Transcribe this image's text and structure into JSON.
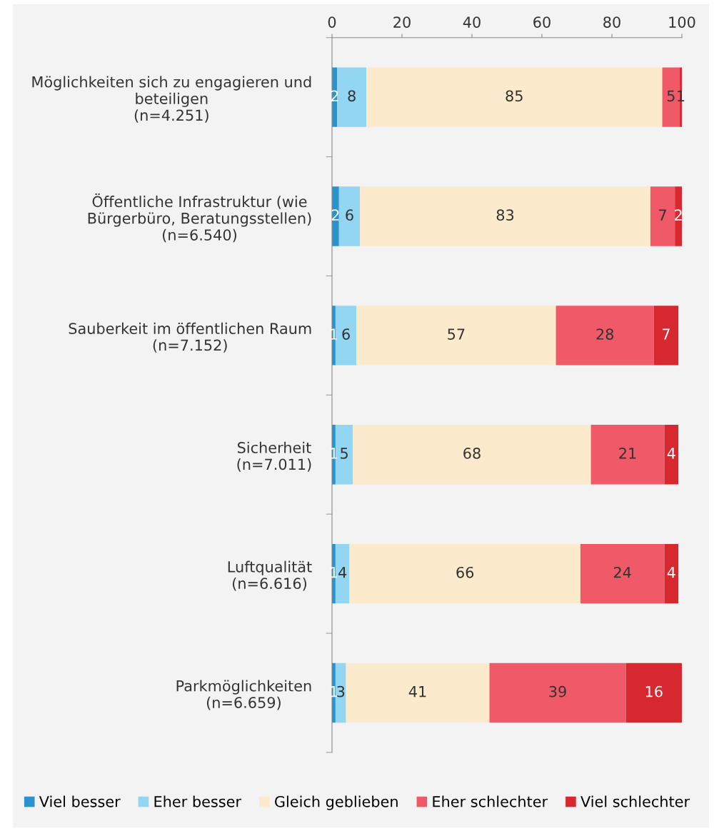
{
  "chart_data": {
    "type": "bar",
    "orientation": "horizontal",
    "stacked": true,
    "grid": false,
    "legend": "bottom",
    "categories": [
      "Möglichkeiten sich zu engagieren und\nbeteiligen\n(n=4.251)",
      "Öffentliche Infrastruktur (wie\nBürgerbüro, Beratungsstellen)\n(n=6.540)",
      "Sauberkeit im öffentlichen Raum\n(n=7.152)",
      "Sicherheit\n(n=7.011)",
      "Luftqualität\n(n=6.616)",
      "Parkmöglichkeiten\n(n=6.659)"
    ],
    "xlim": [
      0,
      100
    ],
    "xticks": [
      0,
      20,
      40,
      60,
      80,
      100
    ],
    "series": [
      {
        "name": "Viel besser",
        "color": "#2a93cc",
        "values": [
          1.5,
          2,
          1,
          1,
          1,
          1
        ],
        "value_labels": [
          "2",
          "2",
          "1",
          "1",
          "1",
          "1"
        ]
      },
      {
        "name": "Eher besser",
        "color": "#92d6f2",
        "values": [
          8.3,
          6,
          6,
          5,
          4,
          3
        ],
        "value_labels": [
          "8",
          "6",
          "6",
          "5",
          "4",
          "3"
        ]
      },
      {
        "name": "Gleich geblieben",
        "color": "#fbeacc",
        "values": [
          84.6,
          83,
          57,
          68,
          66,
          41
        ],
        "value_labels": [
          "85",
          "83",
          "57",
          "68",
          "66",
          "41"
        ]
      },
      {
        "name": "Eher schlechter",
        "color": "#f05a68",
        "values": [
          5,
          7,
          28,
          21,
          24,
          39
        ],
        "value_labels": [
          "5",
          "7",
          "28",
          "21",
          "24",
          "39"
        ]
      },
      {
        "name": "Viel schlechter",
        "color": "#d7282f",
        "values": [
          0.6,
          2,
          7,
          4,
          4,
          16
        ],
        "value_labels": [
          "1",
          "2",
          "7",
          "4",
          "4",
          "16"
        ]
      }
    ]
  }
}
